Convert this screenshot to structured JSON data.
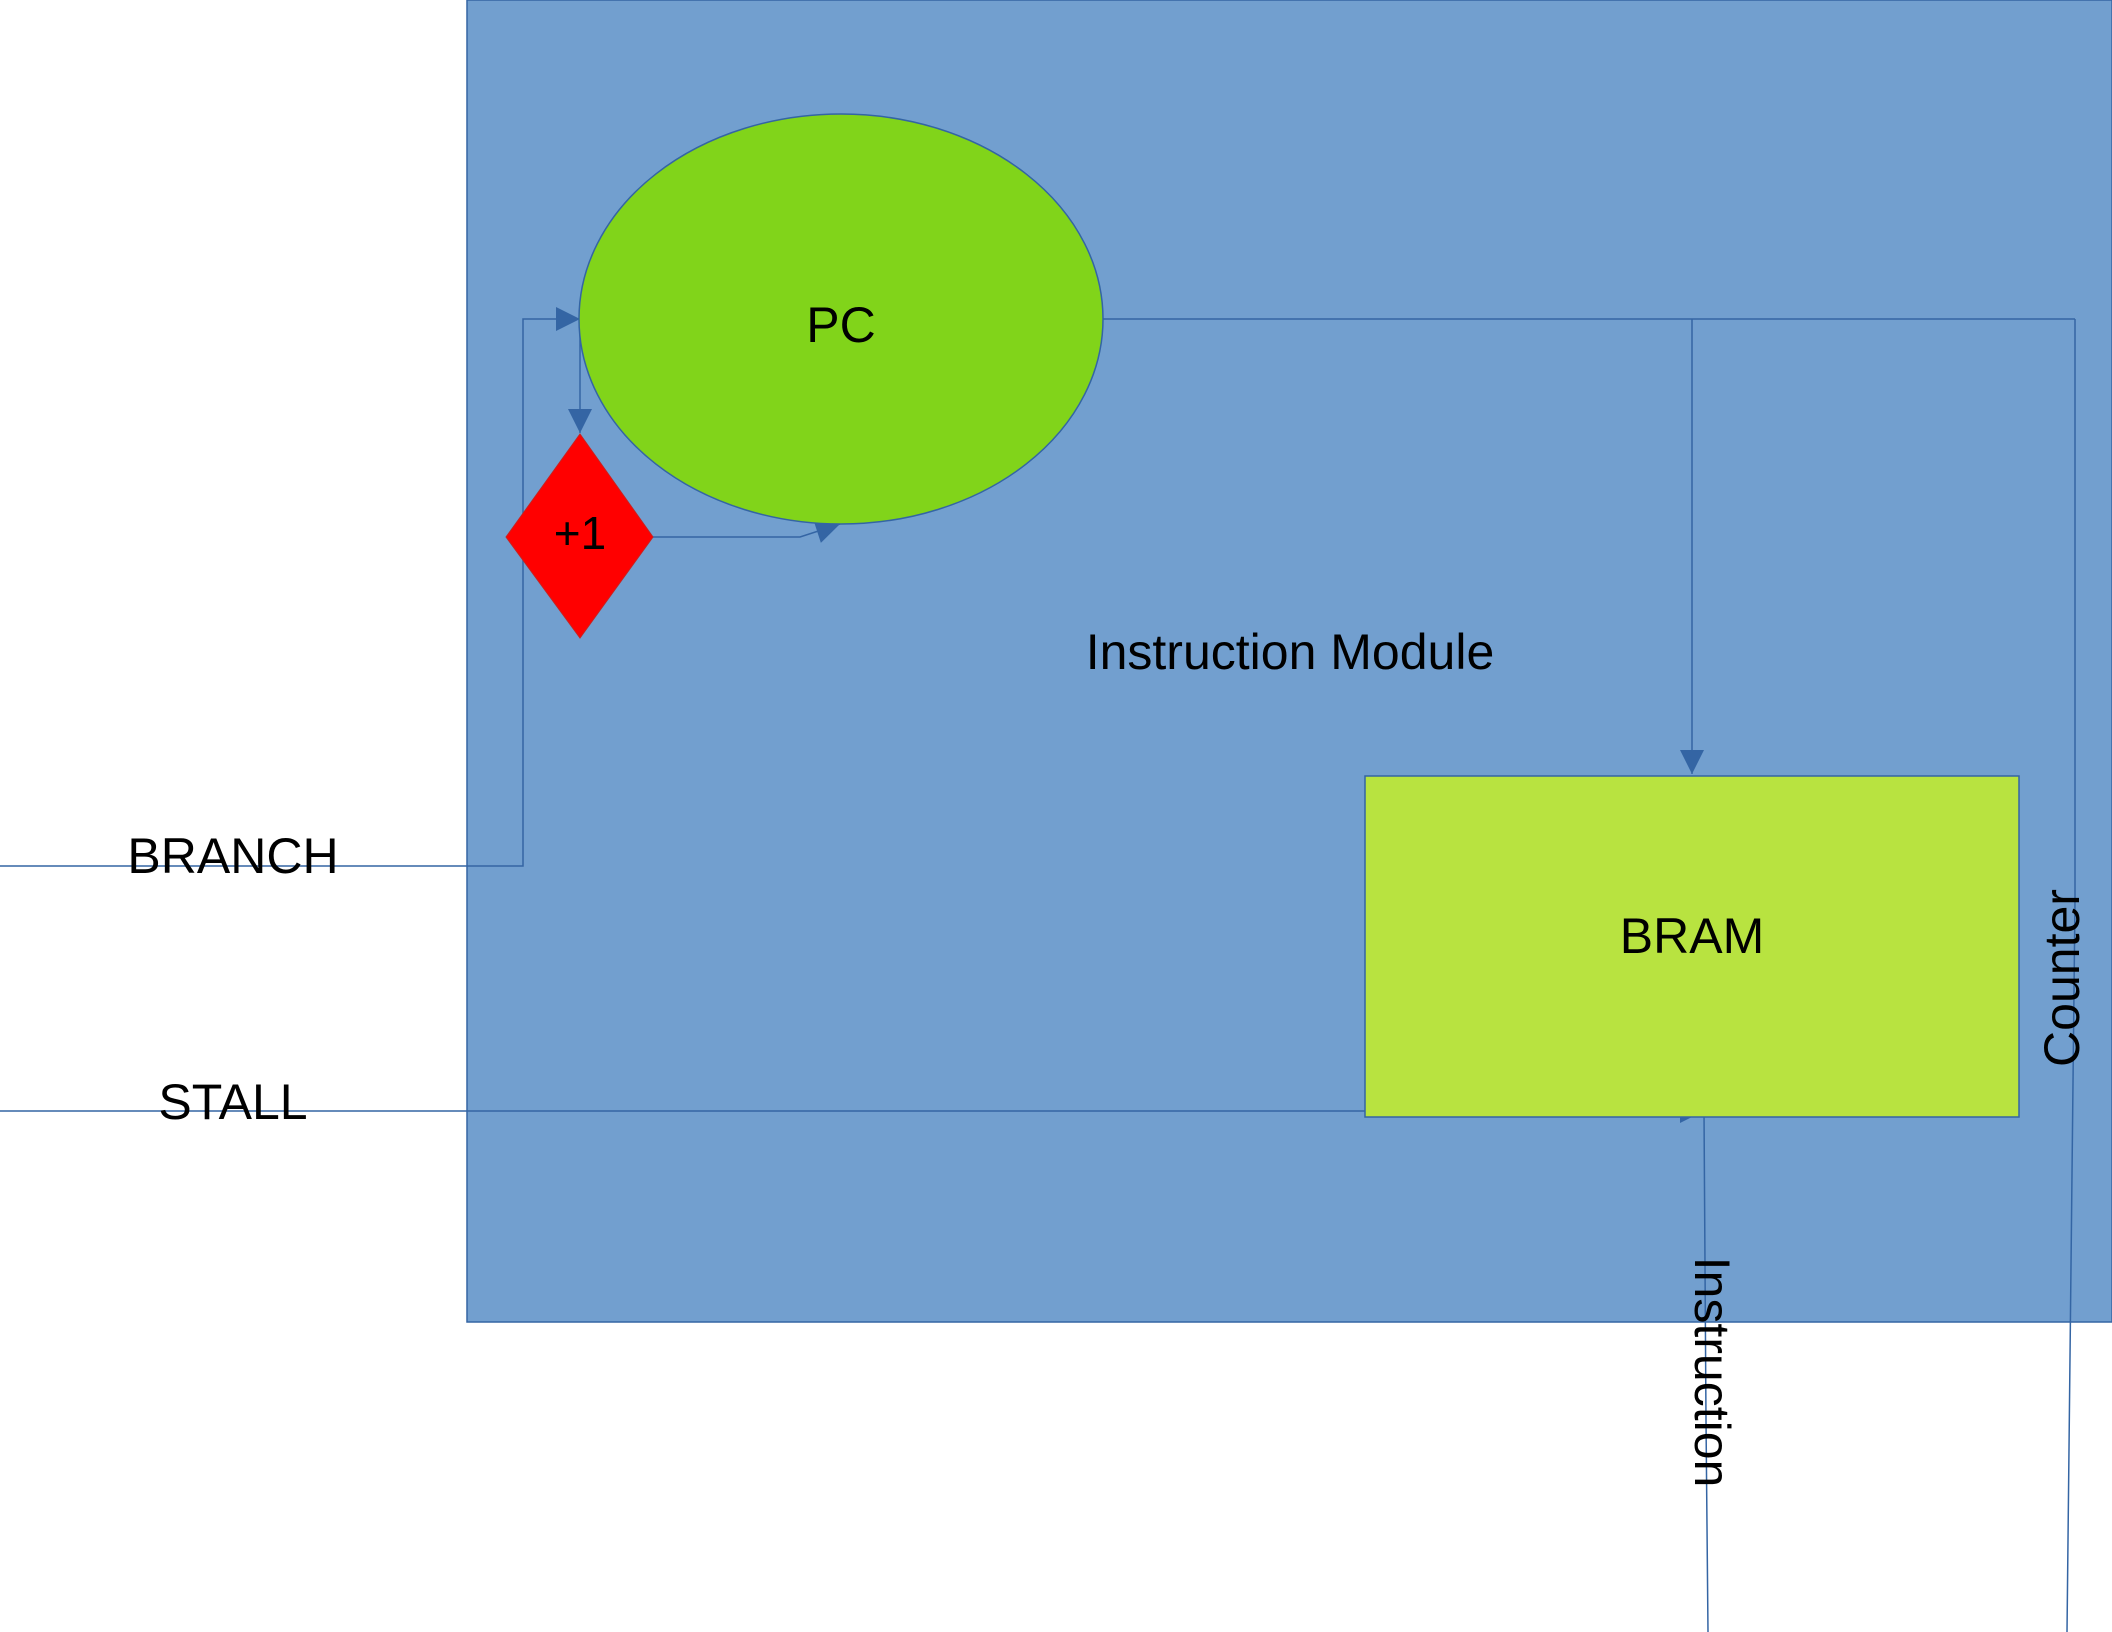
{
  "diagram": {
    "module_label": "Instruction Module",
    "pc_label": "PC",
    "increment_label": "+1",
    "bram_label": "BRAM",
    "branch_label": "BRANCH",
    "stall_label": "STALL",
    "instruction_label": "Instruction",
    "counter_label": "Counter"
  },
  "colors": {
    "module_fill": "#729fcf",
    "pc_fill": "#81d41a",
    "increment_fill": "#ff0000",
    "bram_fill": "#b8e340",
    "wire": "#3465a4"
  }
}
